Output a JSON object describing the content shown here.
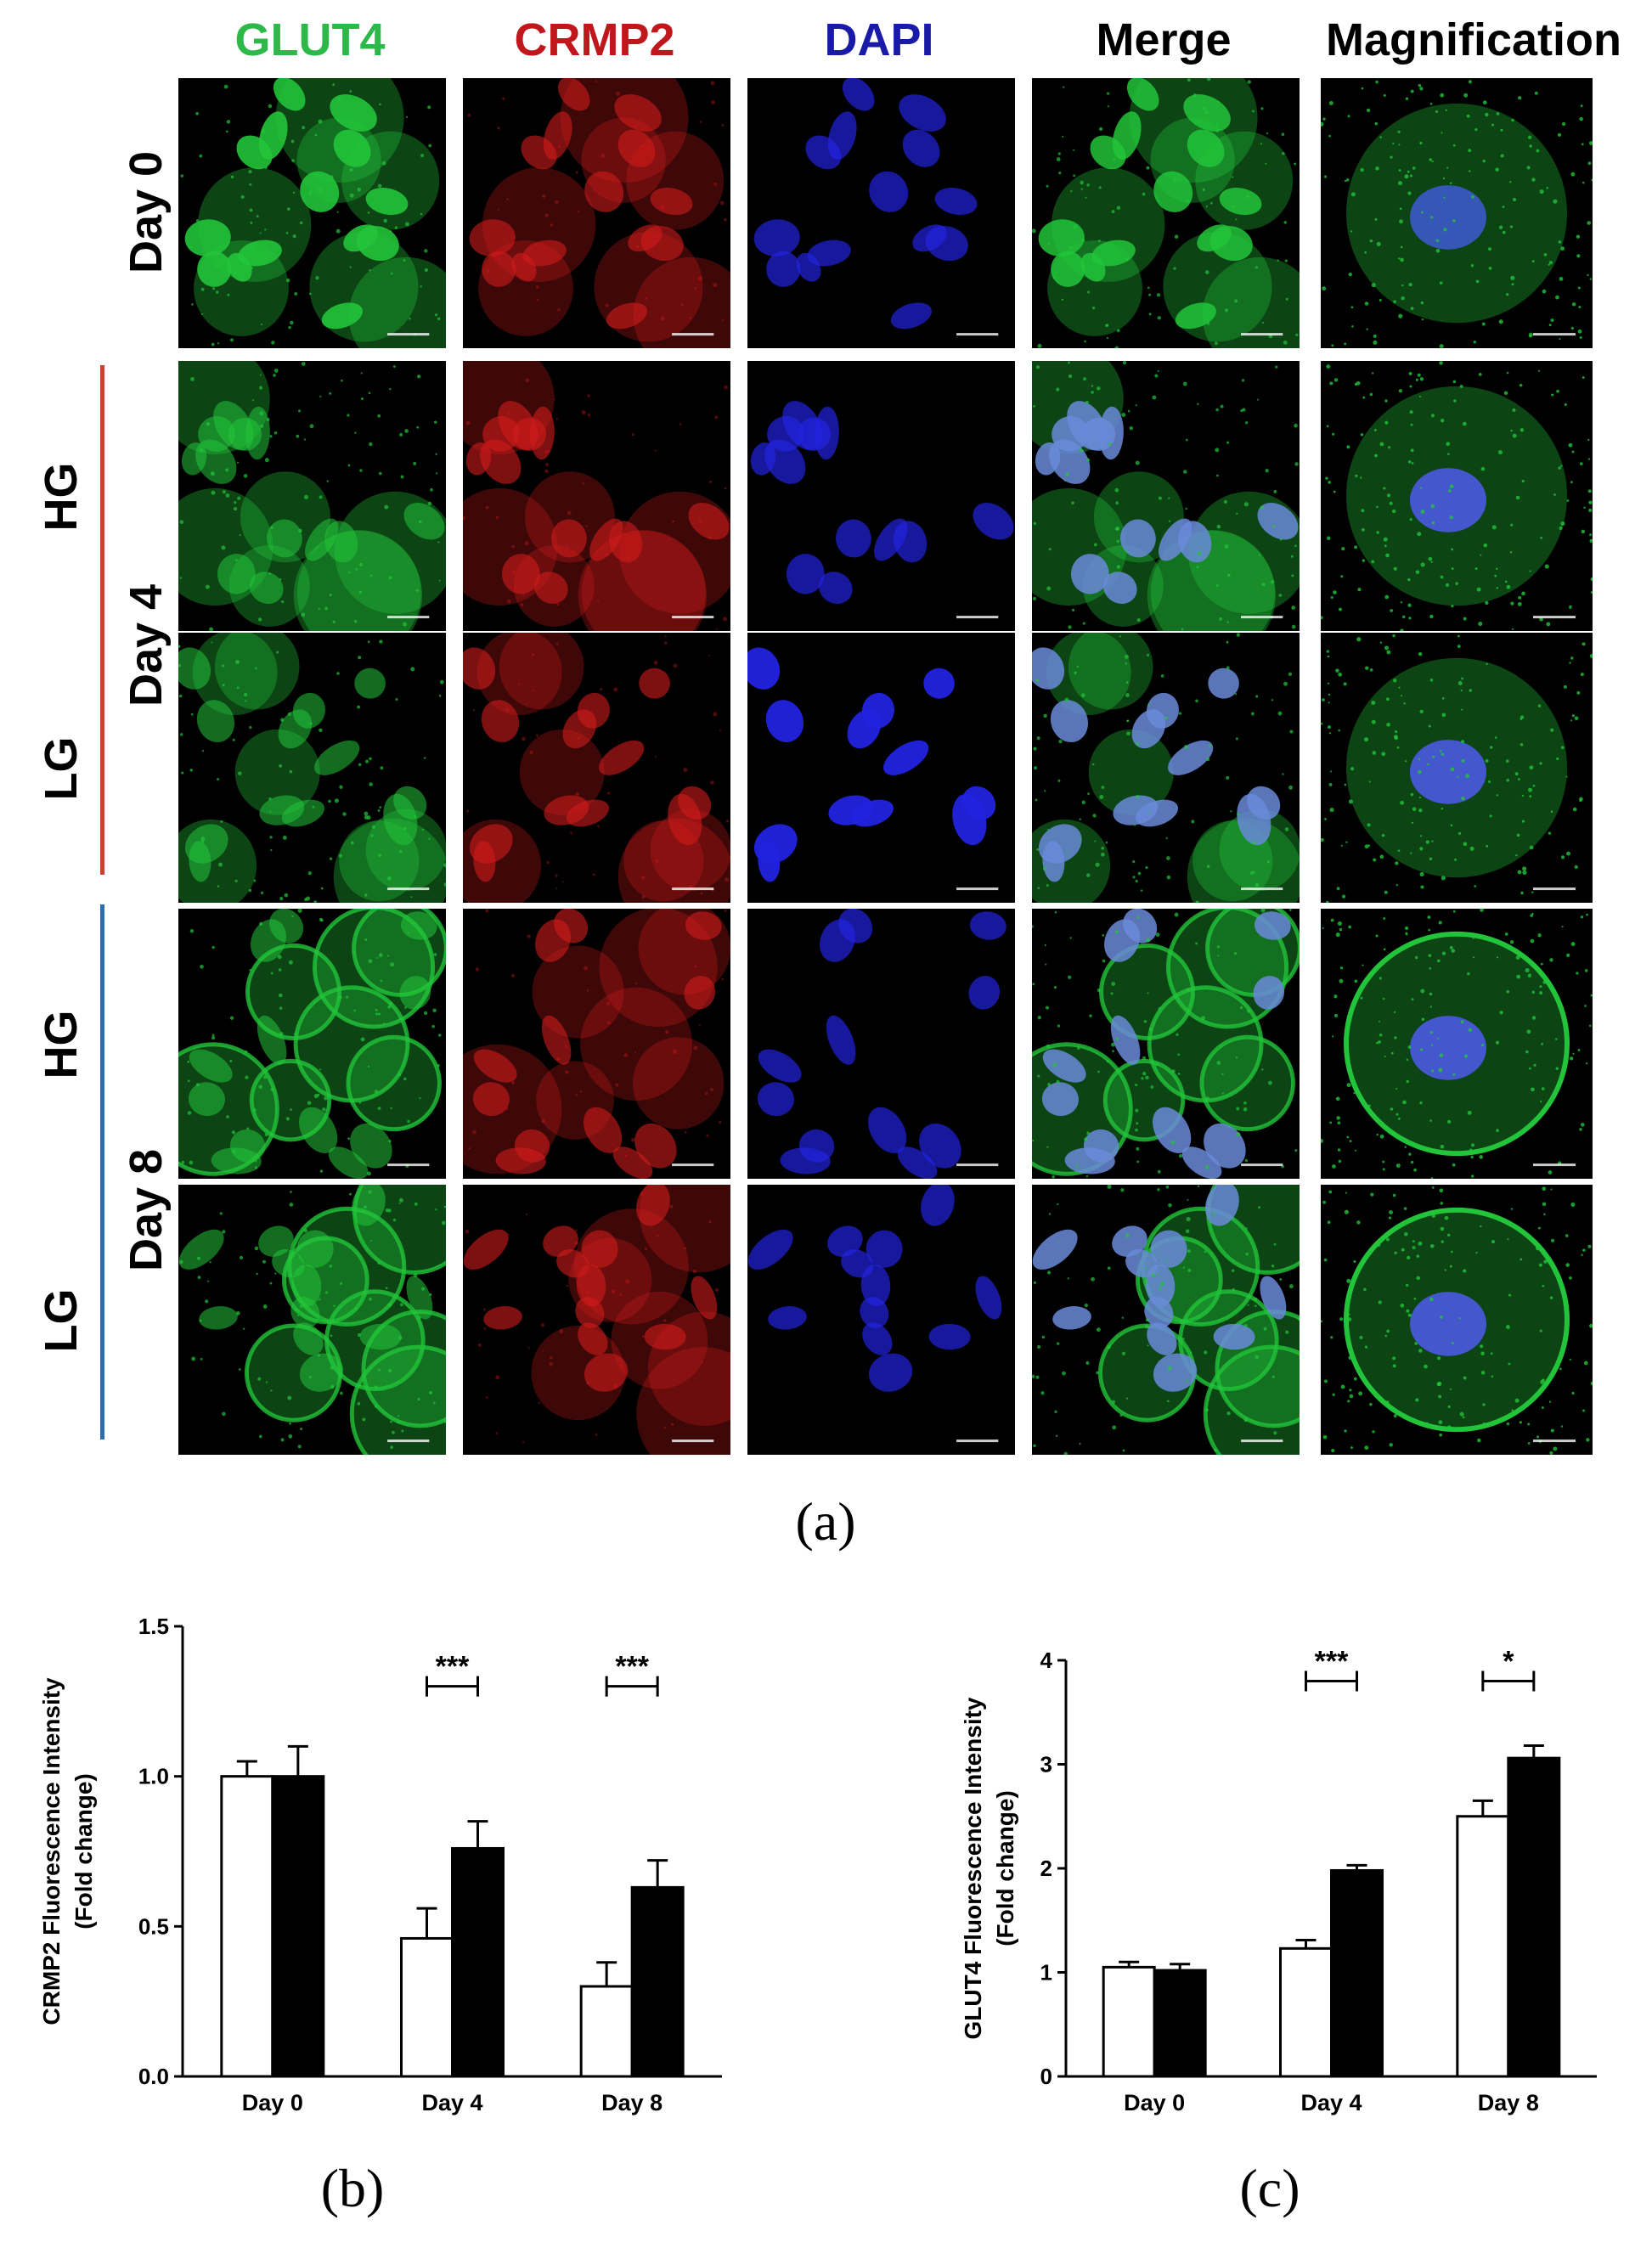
{
  "figure": {
    "panel_labels": [
      "(a)",
      "(b)",
      "(c)"
    ],
    "column_headers": [
      {
        "label": "GLUT4",
        "color": "#2db84a"
      },
      {
        "label": "CRMP2",
        "color": "#c0171d"
      },
      {
        "label": "DAPI",
        "color": "#1a1aa8"
      },
      {
        "label": "Merge",
        "color": "#000000"
      },
      {
        "label": "Magnification",
        "color": "#000000"
      }
    ],
    "rows": [
      {
        "day": "Day 0",
        "condition": ""
      },
      {
        "day": "Day 4",
        "condition": "HG"
      },
      {
        "day": "Day 4",
        "condition": "LG"
      },
      {
        "day": "Day 8",
        "condition": "HG"
      },
      {
        "day": "Day 8",
        "condition": "LG"
      }
    ],
    "day_labels": [
      "Day 0",
      "Day 4",
      "Day 8"
    ],
    "condition_labels": [
      "HG",
      "LG",
      "HG",
      "LG"
    ],
    "group_line_colors": {
      "day4": "#c8442c",
      "day8": "#2a6fb5"
    },
    "channel_colors": {
      "glut4": "#22c43a",
      "crmp2": "#d01a1a",
      "dapi": "#2222e0",
      "background": "#000000"
    }
  },
  "chart_data": [
    {
      "type": "bar",
      "panel": "(b)",
      "ylabel": "CRMP2 Fluorescence Intensity (Fold change)",
      "ylabel_lines": [
        "CRMP2 Fluorescence Intensity",
        "(Fold change)"
      ],
      "categories": [
        "Day 0",
        "Day 4",
        "Day 8"
      ],
      "ylim": [
        0,
        1.5
      ],
      "yticks": [
        "0.0",
        "0.5",
        "1.0",
        "1.5"
      ],
      "ytick_values": [
        0,
        0.5,
        1.0,
        1.5
      ],
      "series": [
        {
          "fill": "#ffffff",
          "values": [
            1.0,
            0.46,
            0.3
          ],
          "errors": [
            0.05,
            0.1,
            0.08
          ]
        },
        {
          "fill": "#000000",
          "values": [
            1.0,
            0.76,
            0.63
          ],
          "errors": [
            0.1,
            0.09,
            0.09
          ]
        }
      ],
      "significance": [
        {
          "category": "Day 4",
          "label": "***",
          "y": 1.3
        },
        {
          "category": "Day 8",
          "label": "***",
          "y": 1.3
        }
      ]
    },
    {
      "type": "bar",
      "panel": "(c)",
      "ylabel": "GLUT4 Fluorescence Intensity (Fold change)",
      "ylabel_lines": [
        "GLUT4 Fluorescence Intensity",
        "(Fold change)"
      ],
      "categories": [
        "Day 0",
        "Day 4",
        "Day 8"
      ],
      "ylim": [
        0,
        4
      ],
      "yticks": [
        "0",
        "1",
        "2",
        "3",
        "4"
      ],
      "ytick_values": [
        0,
        1,
        2,
        3,
        4
      ],
      "series": [
        {
          "fill": "#ffffff",
          "values": [
            1.05,
            1.23,
            2.5
          ],
          "errors": [
            0.05,
            0.08,
            0.15
          ]
        },
        {
          "fill": "#000000",
          "values": [
            1.02,
            1.98,
            3.06
          ],
          "errors": [
            0.06,
            0.05,
            0.12
          ]
        }
      ],
      "significance": [
        {
          "category": "Day 4",
          "label": "***",
          "y": 3.8
        },
        {
          "category": "Day 8",
          "label": "*",
          "y": 3.8
        }
      ]
    }
  ]
}
